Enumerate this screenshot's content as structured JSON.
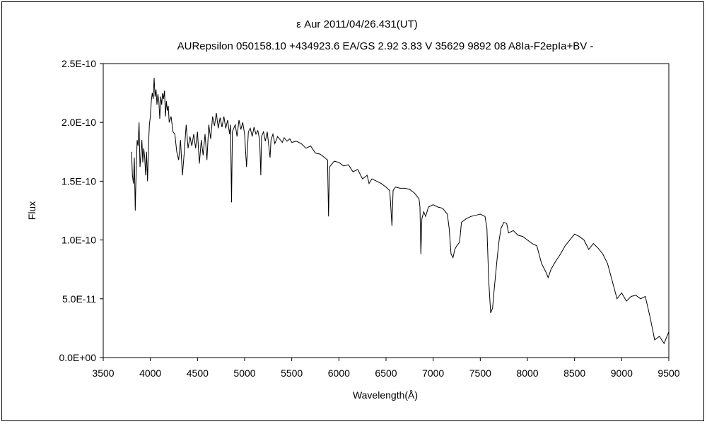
{
  "chart_data": {
    "type": "line",
    "title": "ε  Aur  2011/04/26.431(UT)",
    "subtitle": "AURepsilon 050158.10 +434923.6 EA/GS 2.92 3.83 V 35629 9892 08 A8Ia-F2epIa+BV -",
    "xlabel": "Wavelength(Å)",
    "ylabel": "Flux",
    "xlim": [
      3500,
      9500
    ],
    "ylim": [
      0,
      2.5e-10
    ],
    "x_ticks": [
      "3500",
      "4000",
      "4500",
      "5000",
      "5500",
      "6000",
      "6500",
      "7000",
      "7500",
      "8000",
      "8500",
      "9000",
      "9500"
    ],
    "y_ticks": [
      "0.0E+00",
      "5.0E-11",
      "1.0E-10",
      "1.5E-10",
      "2.0E-10",
      "2.5E-10"
    ],
    "grid": false,
    "series": [
      {
        "color": "#000000",
        "units": "1e-10",
        "points": [
          [
            3800,
            1.75
          ],
          [
            3810,
            1.55
          ],
          [
            3820,
            1.48
          ],
          [
            3830,
            1.7
          ],
          [
            3840,
            1.25
          ],
          [
            3850,
            1.62
          ],
          [
            3860,
            1.85
          ],
          [
            3870,
            1.8
          ],
          [
            3880,
            2.0
          ],
          [
            3890,
            1.62
          ],
          [
            3900,
            1.72
          ],
          [
            3910,
            1.85
          ],
          [
            3920,
            1.66
          ],
          [
            3930,
            1.78
          ],
          [
            3940,
            1.7
          ],
          [
            3950,
            1.55
          ],
          [
            3960,
            1.75
          ],
          [
            3970,
            1.5
          ],
          [
            3980,
            1.8
          ],
          [
            3990,
            1.98
          ],
          [
            4000,
            2.05
          ],
          [
            4010,
            2.18
          ],
          [
            4020,
            2.25
          ],
          [
            4030,
            2.2
          ],
          [
            4040,
            2.38
          ],
          [
            4050,
            2.22
          ],
          [
            4060,
            2.28
          ],
          [
            4070,
            2.15
          ],
          [
            4080,
            2.24
          ],
          [
            4090,
            2.18
          ],
          [
            4100,
            2.03
          ],
          [
            4110,
            2.22
          ],
          [
            4120,
            2.15
          ],
          [
            4130,
            2.25
          ],
          [
            4140,
            2.2
          ],
          [
            4150,
            2.27
          ],
          [
            4160,
            2.05
          ],
          [
            4170,
            2.18
          ],
          [
            4180,
            2.1
          ],
          [
            4190,
            2.14
          ],
          [
            4200,
            2.0
          ],
          [
            4220,
            2.05
          ],
          [
            4240,
            1.92
          ],
          [
            4260,
            1.9
          ],
          [
            4280,
            1.75
          ],
          [
            4300,
            1.68
          ],
          [
            4320,
            1.85
          ],
          [
            4340,
            1.55
          ],
          [
            4360,
            1.75
          ],
          [
            4380,
            1.98
          ],
          [
            4400,
            1.78
          ],
          [
            4420,
            1.88
          ],
          [
            4440,
            1.8
          ],
          [
            4460,
            1.9
          ],
          [
            4480,
            1.78
          ],
          [
            4500,
            1.92
          ],
          [
            4520,
            1.65
          ],
          [
            4540,
            1.85
          ],
          [
            4560,
            1.72
          ],
          [
            4580,
            1.9
          ],
          [
            4600,
            1.68
          ],
          [
            4620,
            1.98
          ],
          [
            4640,
            1.86
          ],
          [
            4660,
            2.05
          ],
          [
            4680,
            1.97
          ],
          [
            4700,
            2.08
          ],
          [
            4720,
            1.95
          ],
          [
            4740,
            2.04
          ],
          [
            4760,
            1.96
          ],
          [
            4780,
            2.05
          ],
          [
            4800,
            1.95
          ],
          [
            4820,
            2.02
          ],
          [
            4840,
            1.9
          ],
          [
            4850,
            1.98
          ],
          [
            4861,
            1.32
          ],
          [
            4870,
            1.92
          ],
          [
            4900,
            1.98
          ],
          [
            4920,
            1.88
          ],
          [
            4940,
            2.02
          ],
          [
            4960,
            1.94
          ],
          [
            4980,
            2.0
          ],
          [
            5000,
            1.9
          ],
          [
            5020,
            1.62
          ],
          [
            5040,
            1.92
          ],
          [
            5060,
            1.95
          ],
          [
            5080,
            1.88
          ],
          [
            5100,
            1.96
          ],
          [
            5120,
            1.9
          ],
          [
            5140,
            1.93
          ],
          [
            5160,
            1.85
          ],
          [
            5172,
            1.55
          ],
          [
            5180,
            1.88
          ],
          [
            5200,
            1.92
          ],
          [
            5220,
            1.84
          ],
          [
            5240,
            1.92
          ],
          [
            5270,
            1.7
          ],
          [
            5280,
            1.85
          ],
          [
            5300,
            1.9
          ],
          [
            5320,
            1.82
          ],
          [
            5350,
            1.88
          ],
          [
            5400,
            1.83
          ],
          [
            5420,
            1.87
          ],
          [
            5450,
            1.84
          ],
          [
            5480,
            1.86
          ],
          [
            5500,
            1.83
          ],
          [
            5550,
            1.84
          ],
          [
            5600,
            1.82
          ],
          [
            5650,
            1.78
          ],
          [
            5700,
            1.8
          ],
          [
            5750,
            1.74
          ],
          [
            5800,
            1.73
          ],
          [
            5850,
            1.7
          ],
          [
            5880,
            1.68
          ],
          [
            5890,
            1.2
          ],
          [
            5900,
            1.62
          ],
          [
            5920,
            1.64
          ],
          [
            5950,
            1.67
          ],
          [
            6000,
            1.66
          ],
          [
            6050,
            1.63
          ],
          [
            6100,
            1.64
          ],
          [
            6150,
            1.58
          ],
          [
            6200,
            1.6
          ],
          [
            6250,
            1.52
          ],
          [
            6300,
            1.55
          ],
          [
            6320,
            1.48
          ],
          [
            6350,
            1.52
          ],
          [
            6400,
            1.5
          ],
          [
            6450,
            1.48
          ],
          [
            6500,
            1.45
          ],
          [
            6540,
            1.42
          ],
          [
            6563,
            1.12
          ],
          [
            6575,
            1.42
          ],
          [
            6600,
            1.45
          ],
          [
            6650,
            1.44
          ],
          [
            6700,
            1.44
          ],
          [
            6750,
            1.43
          ],
          [
            6800,
            1.4
          ],
          [
            6850,
            1.35
          ],
          [
            6860,
            1.28
          ],
          [
            6870,
            0.88
          ],
          [
            6880,
            1.18
          ],
          [
            6900,
            1.24
          ],
          [
            6920,
            1.2
          ],
          [
            6950,
            1.28
          ],
          [
            7000,
            1.3
          ],
          [
            7050,
            1.28
          ],
          [
            7100,
            1.27
          ],
          [
            7150,
            1.22
          ],
          [
            7170,
            1.1
          ],
          [
            7190,
            0.88
          ],
          [
            7210,
            0.85
          ],
          [
            7230,
            0.92
          ],
          [
            7250,
            0.95
          ],
          [
            7280,
            0.98
          ],
          [
            7300,
            1.15
          ],
          [
            7350,
            1.18
          ],
          [
            7400,
            1.2
          ],
          [
            7450,
            1.21
          ],
          [
            7500,
            1.22
          ],
          [
            7550,
            1.2
          ],
          [
            7570,
            1.1
          ],
          [
            7590,
            0.65
          ],
          [
            7610,
            0.38
          ],
          [
            7630,
            0.42
          ],
          [
            7650,
            0.6
          ],
          [
            7680,
            0.85
          ],
          [
            7700,
            1.0
          ],
          [
            7720,
            1.1
          ],
          [
            7750,
            1.15
          ],
          [
            7780,
            1.14
          ],
          [
            7800,
            1.06
          ],
          [
            7850,
            1.08
          ],
          [
            7900,
            1.04
          ],
          [
            7950,
            1.03
          ],
          [
            8000,
            1.0
          ],
          [
            8050,
            0.97
          ],
          [
            8100,
            0.95
          ],
          [
            8150,
            0.8
          ],
          [
            8200,
            0.72
          ],
          [
            8220,
            0.68
          ],
          [
            8250,
            0.75
          ],
          [
            8300,
            0.82
          ],
          [
            8350,
            0.88
          ],
          [
            8400,
            0.95
          ],
          [
            8450,
            1.0
          ],
          [
            8500,
            1.05
          ],
          [
            8550,
            1.03
          ],
          [
            8600,
            1.0
          ],
          [
            8650,
            0.92
          ],
          [
            8700,
            0.97
          ],
          [
            8750,
            0.93
          ],
          [
            8800,
            0.88
          ],
          [
            8850,
            0.8
          ],
          [
            8900,
            0.65
          ],
          [
            8950,
            0.5
          ],
          [
            9000,
            0.55
          ],
          [
            9050,
            0.48
          ],
          [
            9100,
            0.52
          ],
          [
            9150,
            0.53
          ],
          [
            9200,
            0.5
          ],
          [
            9250,
            0.52
          ],
          [
            9300,
            0.35
          ],
          [
            9350,
            0.15
          ],
          [
            9400,
            0.18
          ],
          [
            9450,
            0.12
          ],
          [
            9500,
            0.22
          ]
        ]
      }
    ]
  }
}
